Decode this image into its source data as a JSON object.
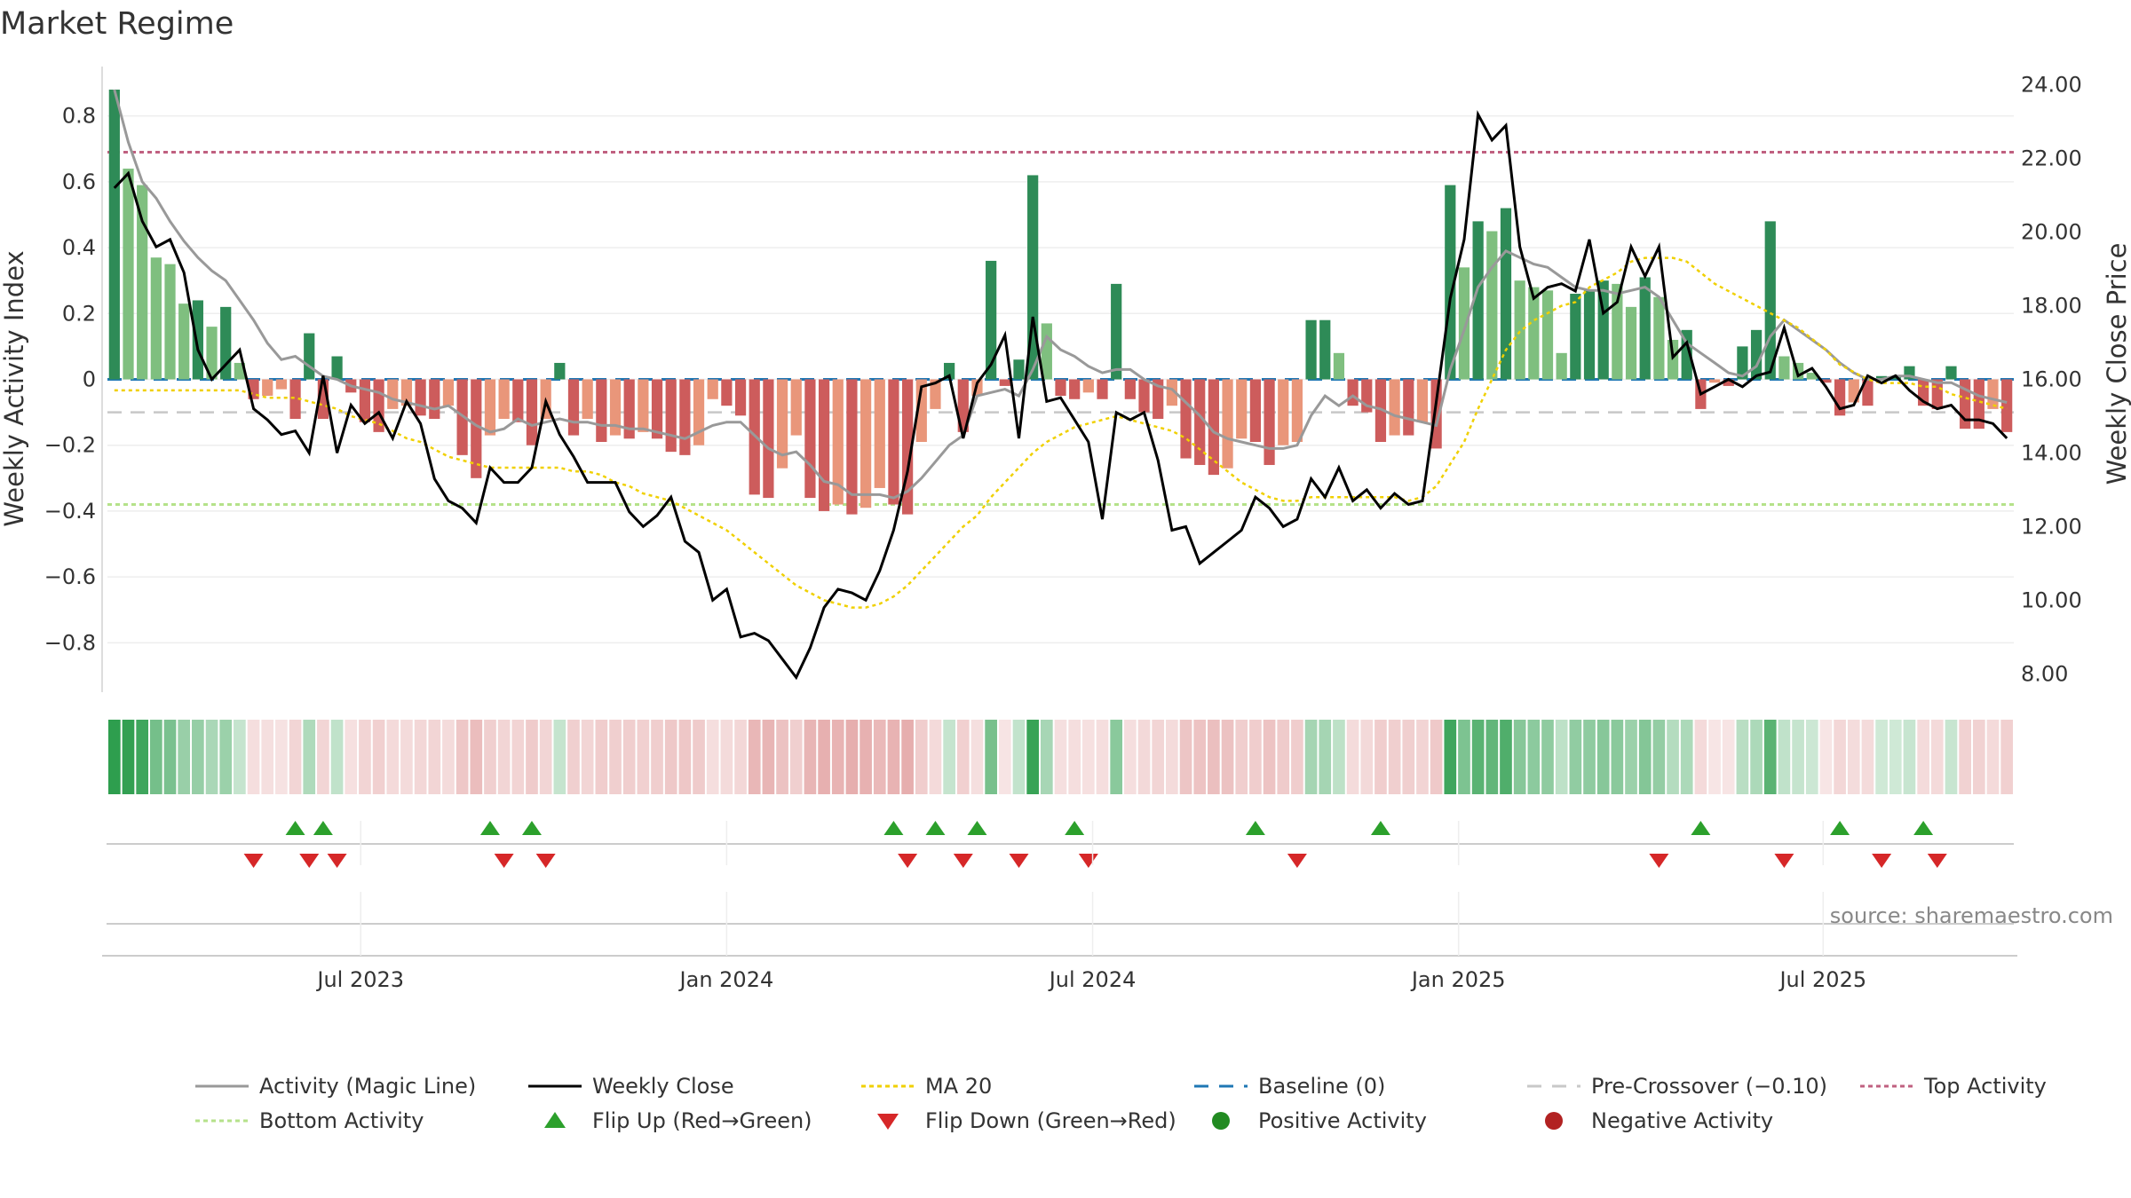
{
  "title": "Market Regime",
  "source": "source: sharemaestro.com",
  "colors": {
    "strong_green": "#2e8b57",
    "light_green": "#7fbf7f",
    "strong_red": "#cd5c5c",
    "light_red": "#e9967a",
    "activity_line": "#999999",
    "close_line": "#000000",
    "ma_line": "#f0d000",
    "baseline": "#1f77b4",
    "pre_crossover": "#c8c8c8",
    "top_activity": "#c06080",
    "bottom_activity": "#b5e28a",
    "flip_up": "#2ca02c",
    "flip_down": "#d62728",
    "grid": "#eeeeee"
  },
  "chart_data": {
    "type": "bar",
    "title": "Market Regime",
    "ylabel": "Weekly Activity Index",
    "ylabel_right": "Weekly Close Price",
    "ylim": [
      -0.95,
      0.95
    ],
    "ylim_right": [
      7.5,
      24.5
    ],
    "yticks": [
      -0.8,
      -0.6,
      -0.4,
      -0.2,
      0,
      0.2,
      0.4,
      0.6,
      0.8
    ],
    "ytick_labels": [
      "−0.8",
      "−0.6",
      "−0.4",
      "−0.2",
      "0",
      "0.2",
      "0.4",
      "0.6",
      "0.8"
    ],
    "yticks_right": [
      8,
      10,
      12,
      14,
      16,
      18,
      20,
      22,
      24
    ],
    "ytick_right_labels": [
      "8.00",
      "10.00",
      "12.00",
      "14.00",
      "16.00",
      "18.00",
      "20.00",
      "22.00",
      "24.00"
    ],
    "x_start": "2023-02-13",
    "week_count": 137,
    "x_ticks": [
      {
        "label": "Jul 2023",
        "week": 18.2
      },
      {
        "label": "Jan 2024",
        "week": 44.5
      },
      {
        "label": "Jul 2024",
        "week": 70.8
      },
      {
        "label": "Jan 2025",
        "week": 97.1
      },
      {
        "label": "Jul 2025",
        "week": 123.3
      }
    ],
    "activity": [
      0.88,
      0.64,
      0.59,
      0.37,
      0.35,
      0.23,
      0.24,
      0.16,
      0.22,
      0.05,
      -0.06,
      -0.05,
      -0.03,
      -0.12,
      0.14,
      -0.12,
      0.07,
      -0.04,
      -0.13,
      -0.16,
      -0.09,
      -0.08,
      -0.11,
      -0.12,
      -0.08,
      -0.23,
      -0.3,
      -0.17,
      -0.12,
      -0.13,
      -0.2,
      -0.12,
      0.05,
      -0.17,
      -0.12,
      -0.19,
      -0.17,
      -0.18,
      -0.16,
      -0.18,
      -0.22,
      -0.23,
      -0.2,
      -0.06,
      -0.08,
      -0.11,
      -0.35,
      -0.36,
      -0.27,
      -0.17,
      -0.36,
      -0.4,
      -0.38,
      -0.41,
      -0.39,
      -0.33,
      -0.38,
      -0.41,
      -0.19,
      -0.09,
      0.05,
      -0.16,
      -0.05,
      0.36,
      -0.02,
      0.06,
      0.62,
      0.17,
      -0.05,
      -0.06,
      -0.04,
      -0.06,
      0.29,
      -0.06,
      -0.1,
      -0.12,
      -0.08,
      -0.24,
      -0.26,
      -0.29,
      -0.27,
      -0.18,
      -0.19,
      -0.26,
      -0.2,
      -0.19,
      0.18,
      0.18,
      0.08,
      -0.08,
      -0.1,
      -0.19,
      -0.17,
      -0.17,
      -0.13,
      -0.21,
      0.59,
      0.34,
      0.48,
      0.45,
      0.52,
      0.3,
      0.28,
      0.27,
      0.08,
      0.26,
      0.27,
      0.3,
      0.29,
      0.22,
      0.31,
      0.25,
      0.12,
      0.15,
      -0.09,
      -0.01,
      -0.02,
      0.1,
      0.15,
      0.48,
      0.07,
      0.05,
      0.02,
      -0.01,
      -0.11,
      -0.07,
      -0.08,
      0.01,
      0.01,
      0.04,
      -0.08,
      -0.09,
      0.04,
      -0.15,
      -0.15,
      -0.09,
      -0.16
    ],
    "activity_line": [
      0.88,
      0.72,
      0.6,
      0.55,
      0.48,
      0.42,
      0.37,
      0.33,
      0.3,
      0.24,
      0.18,
      0.11,
      0.06,
      0.07,
      0.04,
      0.01,
      0.0,
      -0.02,
      -0.03,
      -0.04,
      -0.06,
      -0.07,
      -0.08,
      -0.09,
      -0.08,
      -0.11,
      -0.14,
      -0.16,
      -0.15,
      -0.12,
      -0.14,
      -0.13,
      -0.12,
      -0.13,
      -0.13,
      -0.14,
      -0.14,
      -0.15,
      -0.15,
      -0.16,
      -0.17,
      -0.18,
      -0.16,
      -0.14,
      -0.13,
      -0.13,
      -0.17,
      -0.21,
      -0.23,
      -0.22,
      -0.26,
      -0.31,
      -0.32,
      -0.35,
      -0.35,
      -0.35,
      -0.36,
      -0.34,
      -0.3,
      -0.25,
      -0.2,
      -0.17,
      -0.05,
      -0.04,
      -0.03,
      -0.05,
      0.03,
      0.13,
      0.09,
      0.07,
      0.04,
      0.02,
      0.03,
      0.03,
      0.0,
      -0.02,
      -0.03,
      -0.07,
      -0.11,
      -0.16,
      -0.18,
      -0.19,
      -0.2,
      -0.21,
      -0.21,
      -0.2,
      -0.11,
      -0.05,
      -0.08,
      -0.05,
      -0.08,
      -0.09,
      -0.11,
      -0.12,
      -0.13,
      -0.14,
      0.03,
      0.15,
      0.28,
      0.34,
      0.39,
      0.37,
      0.35,
      0.34,
      0.31,
      0.28,
      0.27,
      0.27,
      0.26,
      0.27,
      0.28,
      0.25,
      0.18,
      0.11,
      0.08,
      0.05,
      0.02,
      0.01,
      0.04,
      0.13,
      0.18,
      0.15,
      0.12,
      0.09,
      0.05,
      0.02,
      0.0,
      0.0,
      0.01,
      0.01,
      0.0,
      -0.01,
      -0.01,
      -0.03,
      -0.05,
      -0.06,
      -0.07
    ],
    "close": [
      21.2,
      21.6,
      20.3,
      19.6,
      19.8,
      18.9,
      16.8,
      16.0,
      16.4,
      16.8,
      15.2,
      14.9,
      14.5,
      14.6,
      14.0,
      16.1,
      14.0,
      15.3,
      14.8,
      15.1,
      14.4,
      15.4,
      14.8,
      13.3,
      12.7,
      12.5,
      12.1,
      13.6,
      13.2,
      13.2,
      13.6,
      15.4,
      14.5,
      13.9,
      13.2,
      13.2,
      13.2,
      12.4,
      12.0,
      12.3,
      12.8,
      11.6,
      11.3,
      10.0,
      10.3,
      9.0,
      9.1,
      8.9,
      8.4,
      7.9,
      8.7,
      9.8,
      10.3,
      10.2,
      10.0,
      10.8,
      11.9,
      13.5,
      15.8,
      15.9,
      16.1,
      14.4,
      15.9,
      16.4,
      17.2,
      14.4,
      17.7,
      15.4,
      15.5,
      14.9,
      14.3,
      12.2,
      15.1,
      14.9,
      15.1,
      13.8,
      11.9,
      12.0,
      11.0,
      11.3,
      11.6,
      11.9,
      12.8,
      12.5,
      12.0,
      12.2,
      13.3,
      12.8,
      13.6,
      12.7,
      13.0,
      12.5,
      12.9,
      12.6,
      12.7,
      15.4,
      18.2,
      19.8,
      23.2,
      22.5,
      22.9,
      19.6,
      18.2,
      18.5,
      18.6,
      18.4,
      19.8,
      17.8,
      18.1,
      19.6,
      18.8,
      19.6,
      16.6,
      17.0,
      15.6,
      15.8,
      16.0,
      15.8,
      16.1,
      16.2,
      17.4,
      16.1,
      16.3,
      15.8,
      15.2,
      15.3,
      16.1,
      15.9,
      16.1,
      15.7,
      15.4,
      15.2,
      15.3,
      14.9,
      14.9,
      14.8,
      14.4
    ],
    "ma20": [
      15.7,
      15.7,
      15.7,
      15.7,
      15.7,
      15.7,
      15.7,
      15.7,
      15.7,
      15.7,
      15.6,
      15.5,
      15.5,
      15.5,
      15.4,
      15.3,
      15.2,
      15.0,
      14.9,
      14.8,
      14.6,
      14.4,
      14.3,
      14.1,
      13.9,
      13.8,
      13.7,
      13.6,
      13.6,
      13.6,
      13.6,
      13.6,
      13.6,
      13.5,
      13.5,
      13.4,
      13.2,
      13.1,
      12.9,
      12.8,
      12.7,
      12.5,
      12.3,
      12.1,
      11.9,
      11.6,
      11.3,
      11.0,
      10.7,
      10.4,
      10.2,
      10.0,
      9.9,
      9.8,
      9.8,
      9.9,
      10.1,
      10.4,
      10.8,
      11.2,
      11.6,
      12.0,
      12.3,
      12.8,
      13.2,
      13.6,
      14.0,
      14.3,
      14.5,
      14.7,
      14.8,
      14.9,
      15.0,
      14.9,
      14.8,
      14.7,
      14.6,
      14.4,
      14.1,
      13.8,
      13.5,
      13.2,
      13.0,
      12.8,
      12.7,
      12.7,
      12.8,
      12.8,
      12.8,
      12.8,
      12.8,
      12.8,
      12.8,
      12.7,
      12.8,
      13.1,
      13.7,
      14.3,
      15.2,
      16.0,
      16.8,
      17.3,
      17.6,
      17.8,
      18.0,
      18.1,
      18.5,
      18.7,
      18.9,
      19.2,
      19.3,
      19.3,
      19.3,
      19.2,
      18.9,
      18.6,
      18.4,
      18.2,
      18.0,
      17.8,
      17.6,
      17.4,
      17.1,
      16.8,
      16.4,
      16.2,
      16.0,
      15.9,
      15.9,
      15.9,
      15.8,
      15.8,
      15.6,
      15.5,
      15.4,
      15.3,
      15.2
    ],
    "baseline": 0,
    "pre_crossover": -0.1,
    "top_activity": 0.69,
    "bottom_activity": -0.38,
    "flip_up_weeks": [
      13,
      15,
      27,
      30,
      56,
      59,
      62,
      69,
      82,
      91,
      114,
      124,
      130
    ],
    "flip_down_weeks": [
      10,
      14,
      16,
      28,
      31,
      57,
      61,
      65,
      70,
      85,
      111,
      120,
      127,
      131
    ],
    "legend": [
      {
        "label": "Activity (Magic Line)",
        "kind": "solid",
        "color": "#999999"
      },
      {
        "label": "Weekly Close",
        "kind": "solid",
        "color": "#000000"
      },
      {
        "label": "MA 20",
        "kind": "dotted",
        "color": "#f0d000"
      },
      {
        "label": "Baseline (0)",
        "kind": "dashed",
        "color": "#1f77b4"
      },
      {
        "label": "Pre-Crossover (−0.10)",
        "kind": "dashed",
        "color": "#c8c8c8"
      },
      {
        "label": "Top Activity",
        "kind": "dotted",
        "color": "#c06080"
      },
      {
        "label": "Bottom Activity",
        "kind": "dotted",
        "color": "#b5e28a"
      },
      {
        "label": "Flip Up (Red→Green)",
        "kind": "triangle-up",
        "color": "#2ca02c"
      },
      {
        "label": "Flip Down (Green→Red)",
        "kind": "triangle-down",
        "color": "#d62728"
      },
      {
        "label": "Positive Activity",
        "kind": "dot",
        "color": "#228b22"
      },
      {
        "label": "Negative Activity",
        "kind": "dot",
        "color": "#b22222"
      }
    ],
    "legend_position": "bottom",
    "grid": true
  }
}
